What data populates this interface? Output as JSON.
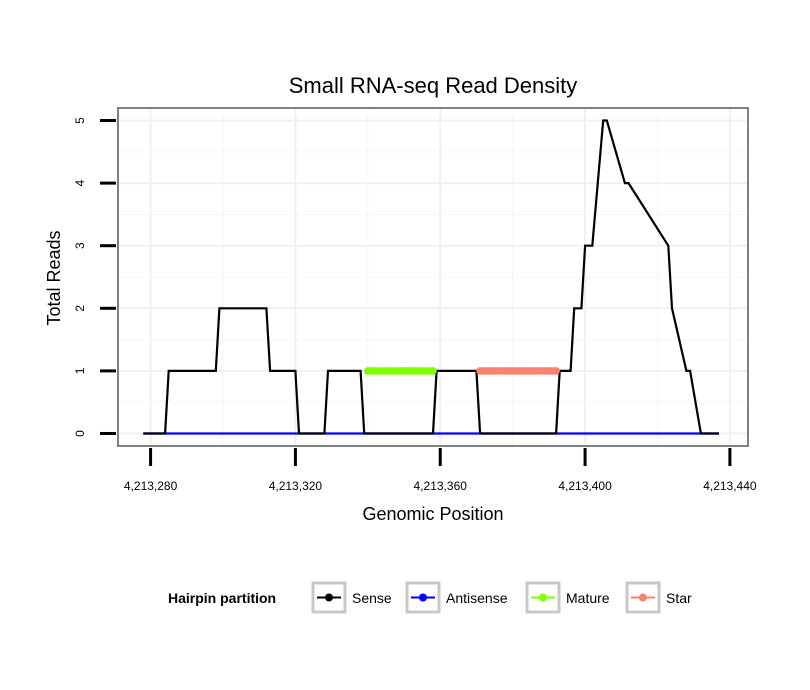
{
  "chart_data": {
    "type": "line",
    "title": "Small RNA-seq Read Density",
    "xlabel": "Genomic Position",
    "ylabel": "Total Reads",
    "xlim": [
      4213271,
      4213445
    ],
    "ylim": [
      -0.2,
      5.2
    ],
    "x_ticks": [
      4213280,
      4213320,
      4213360,
      4213400,
      4213440
    ],
    "x_tick_labels": [
      "4,213,280",
      "4,213,320",
      "4,213,360",
      "4,213,400",
      "4,213,440"
    ],
    "y_ticks": [
      0,
      1,
      2,
      3,
      4,
      5
    ],
    "y_tick_labels": [
      "0",
      "1",
      "2",
      "3",
      "4",
      "5"
    ],
    "grid": true,
    "legend_title": "Hairpin partition",
    "legend_position": "bottom",
    "series": [
      {
        "name": "Sense",
        "color": "#000000",
        "markers": false,
        "x": [
          4213278,
          4213284,
          4213285,
          4213298,
          4213299,
          4213312,
          4213313,
          4213320,
          4213321,
          4213328,
          4213329,
          4213338,
          4213339,
          4213358,
          4213359,
          4213370,
          4213371,
          4213392,
          4213393,
          4213396,
          4213397,
          4213399,
          4213400,
          4213400.5,
          4213401,
          4213402,
          4213405,
          4213406,
          4213411,
          4213412,
          4213423,
          4213424,
          4213428,
          4213429,
          4213432,
          4213433,
          4213437
        ],
        "y": [
          0,
          0,
          1,
          1,
          2,
          2,
          1,
          1,
          0,
          0,
          1,
          1,
          0,
          0,
          1,
          1,
          0,
          0,
          1,
          1,
          2,
          2,
          3,
          3,
          3,
          3,
          5,
          5,
          4,
          4,
          3,
          2,
          1,
          1,
          0,
          0,
          0
        ]
      },
      {
        "name": "Antisense",
        "color": "#0000ff",
        "markers": false,
        "x": [
          4213278,
          4213437
        ],
        "y": [
          0,
          0
        ]
      },
      {
        "name": "Mature",
        "color": "#7fff00",
        "markers": true,
        "x": [
          4213340,
          4213341,
          4213342,
          4213343,
          4213344,
          4213345,
          4213346,
          4213347,
          4213348,
          4213349,
          4213350,
          4213351,
          4213352,
          4213353,
          4213354,
          4213355,
          4213356,
          4213357,
          4213358
        ],
        "y": [
          1,
          1,
          1,
          1,
          1,
          1,
          1,
          1,
          1,
          1,
          1,
          1,
          1,
          1,
          1,
          1,
          1,
          1,
          1
        ]
      },
      {
        "name": "Star",
        "color": "#fa8072",
        "markers": true,
        "x": [
          4213371,
          4213372,
          4213373,
          4213374,
          4213375,
          4213376,
          4213377,
          4213378,
          4213379,
          4213380,
          4213381,
          4213382,
          4213383,
          4213384,
          4213385,
          4213386,
          4213387,
          4213388,
          4213389,
          4213390,
          4213391,
          4213392
        ],
        "y": [
          1,
          1,
          1,
          1,
          1,
          1,
          1,
          1,
          1,
          1,
          1,
          1,
          1,
          1,
          1,
          1,
          1,
          1,
          1,
          1,
          1,
          1
        ]
      }
    ]
  }
}
